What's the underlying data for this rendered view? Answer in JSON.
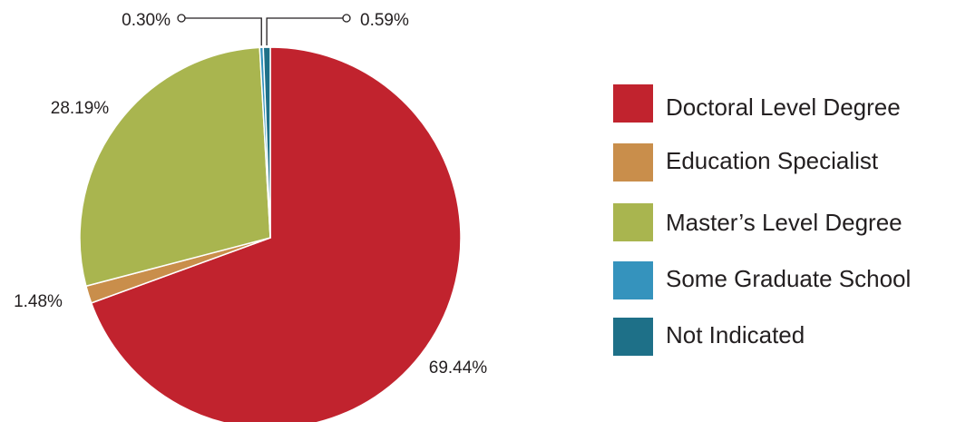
{
  "chart_data": {
    "type": "pie",
    "categories": [
      "Doctoral Level Degree",
      "Education Specialist",
      "Master’s Level Degree",
      "Some Graduate School",
      "Not Indicated"
    ],
    "values": [
      69.44,
      1.48,
      28.19,
      0.3,
      0.59
    ],
    "value_labels": [
      "69.44%",
      "1.48%",
      "28.19%",
      "0.30%",
      "0.59%"
    ],
    "colors": [
      "#c1232e",
      "#c98e4b",
      "#a9b54f",
      "#3593bd",
      "#1e7088"
    ],
    "start_angle_deg": 0,
    "direction": "clockwise",
    "legend_position": "right"
  }
}
